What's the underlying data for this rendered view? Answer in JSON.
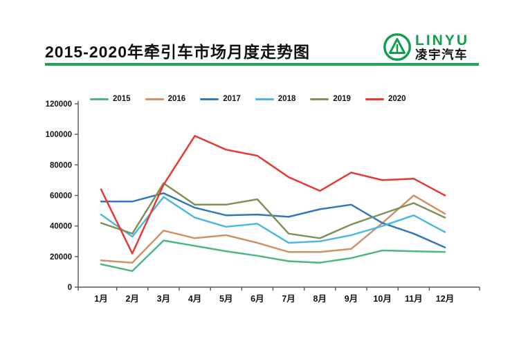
{
  "header": {
    "title": "2015-2020年牵引车市场月度走势图",
    "logo": {
      "brand": "LINYU",
      "brand_cn": "凌宇汽车",
      "brand_color": "#0f9e4c"
    },
    "rule_color": "#1ca655"
  },
  "axis_colors": {
    "line": "#555555",
    "label": "#111111"
  },
  "chart_data": {
    "type": "line",
    "title": "2015-2020年牵引车市场月度走势图",
    "xlabel": "",
    "ylabel": "",
    "ylim": [
      0,
      120000
    ],
    "ytick_step": 20000,
    "grid": false,
    "legend_position": "top",
    "categories": [
      "1月",
      "2月",
      "3月",
      "4月",
      "5月",
      "6月",
      "7月",
      "8月",
      "9月",
      "10月",
      "11月",
      "12月"
    ],
    "series": [
      {
        "name": "2015",
        "color": "#4cb87f",
        "values": [
          15000,
          10500,
          30500,
          27000,
          23500,
          20500,
          17000,
          16000,
          19000,
          24000,
          23500,
          23000
        ]
      },
      {
        "name": "2016",
        "color": "#cf9165",
        "values": [
          17500,
          16000,
          37000,
          32000,
          34000,
          29000,
          23000,
          23000,
          25000,
          42000,
          60000,
          48000
        ]
      },
      {
        "name": "2017",
        "color": "#3377bb",
        "values": [
          56000,
          56000,
          61500,
          52000,
          47000,
          47500,
          46000,
          51000,
          54000,
          42000,
          35000,
          26000
        ]
      },
      {
        "name": "2018",
        "color": "#49b9e4",
        "values": [
          47500,
          33000,
          59000,
          45500,
          39500,
          41500,
          29000,
          30000,
          34000,
          40000,
          47000,
          36000
        ]
      },
      {
        "name": "2019",
        "color": "#7d9159",
        "values": [
          42000,
          35000,
          68000,
          54000,
          54000,
          57500,
          35000,
          32000,
          41000,
          48000,
          55000,
          45500
        ]
      },
      {
        "name": "2020",
        "color": "#e8382f",
        "values": [
          64000,
          22000,
          67000,
          99000,
          90000,
          86000,
          72000,
          63000,
          75000,
          70000,
          71000,
          60000
        ]
      }
    ]
  }
}
